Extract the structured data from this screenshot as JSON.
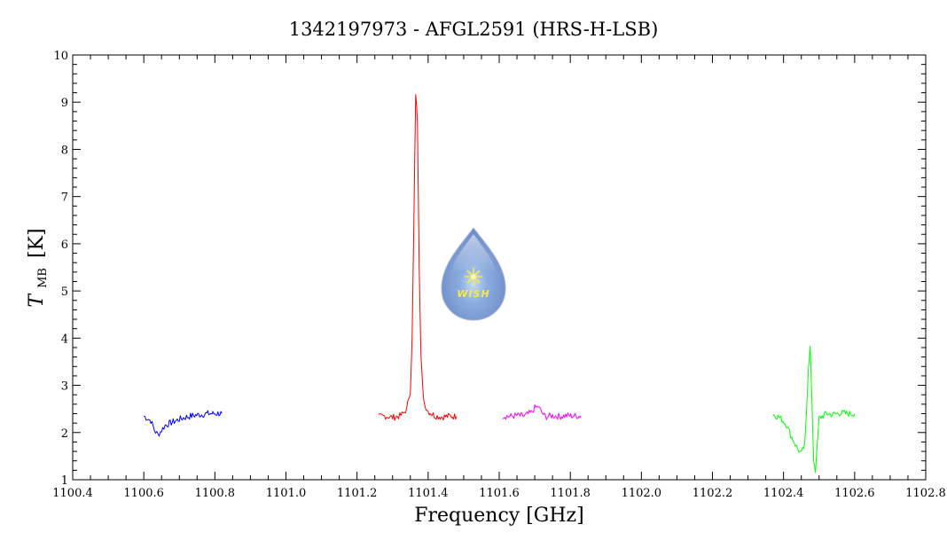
{
  "chart_data": {
    "type": "line",
    "title": "1342197973 - AFGL2591 (HRS-H-LSB)",
    "xlabel": "Frequency [GHz]",
    "ylabel_main": "T",
    "ylabel_sub": "MB",
    "ylabel_unit": "[K]",
    "xlim": [
      1100.4,
      1102.8
    ],
    "ylim": [
      1,
      10
    ],
    "x_ticks": [
      "1100.4",
      "1100.6",
      "1100.8",
      "1101.0",
      "1101.2",
      "1101.4",
      "1101.6",
      "1101.8",
      "1102.0",
      "1102.2",
      "1102.4",
      "1102.6",
      "1102.8"
    ],
    "y_ticks": [
      "1",
      "2",
      "3",
      "4",
      "5",
      "6",
      "7",
      "8",
      "9",
      "10"
    ],
    "logo_text": "WISH",
    "series": [
      {
        "color": "#0000ff",
        "x": [
          1100.6,
          1100.61,
          1100.62,
          1100.63,
          1100.64,
          1100.65,
          1100.66,
          1100.68,
          1100.7,
          1100.72,
          1100.74,
          1100.76,
          1100.78,
          1100.8,
          1100.82
        ],
        "y": [
          2.35,
          2.3,
          2.25,
          2.05,
          1.95,
          2.05,
          2.15,
          2.22,
          2.28,
          2.33,
          2.36,
          2.38,
          2.4,
          2.4,
          2.41
        ]
      },
      {
        "color": "#ff0000",
        "x": [
          1101.26,
          1101.28,
          1101.3,
          1101.32,
          1101.33,
          1101.34,
          1101.35,
          1101.355,
          1101.36,
          1101.365,
          1101.37,
          1101.375,
          1101.38,
          1101.385,
          1101.39,
          1101.4,
          1101.42,
          1101.44,
          1101.46,
          1101.48
        ],
        "y": [
          2.33,
          2.35,
          2.32,
          2.35,
          2.4,
          2.5,
          2.9,
          4.0,
          6.5,
          9.2,
          8.6,
          5.5,
          3.6,
          2.9,
          2.6,
          2.45,
          2.35,
          2.33,
          2.35,
          2.34
        ]
      },
      {
        "color": "#ff00ff",
        "x": [
          1101.61,
          1101.63,
          1101.65,
          1101.67,
          1101.69,
          1101.7,
          1101.71,
          1101.72,
          1101.73,
          1101.75,
          1101.77,
          1101.79,
          1101.81,
          1101.83
        ],
        "y": [
          2.35,
          2.34,
          2.36,
          2.35,
          2.42,
          2.52,
          2.55,
          2.42,
          2.33,
          2.36,
          2.34,
          2.36,
          2.35,
          2.35
        ]
      },
      {
        "color": "#00ff00",
        "x": [
          1102.37,
          1102.39,
          1102.41,
          1102.42,
          1102.43,
          1102.44,
          1102.45,
          1102.46,
          1102.465,
          1102.47,
          1102.475,
          1102.48,
          1102.485,
          1102.49,
          1102.5,
          1102.52,
          1102.54,
          1102.56,
          1102.58,
          1102.6
        ],
        "y": [
          2.38,
          2.32,
          2.15,
          1.95,
          1.8,
          1.65,
          1.55,
          1.75,
          2.5,
          3.4,
          3.8,
          2.6,
          1.4,
          1.2,
          2.3,
          2.4,
          2.38,
          2.42,
          2.4,
          2.4
        ]
      }
    ]
  }
}
